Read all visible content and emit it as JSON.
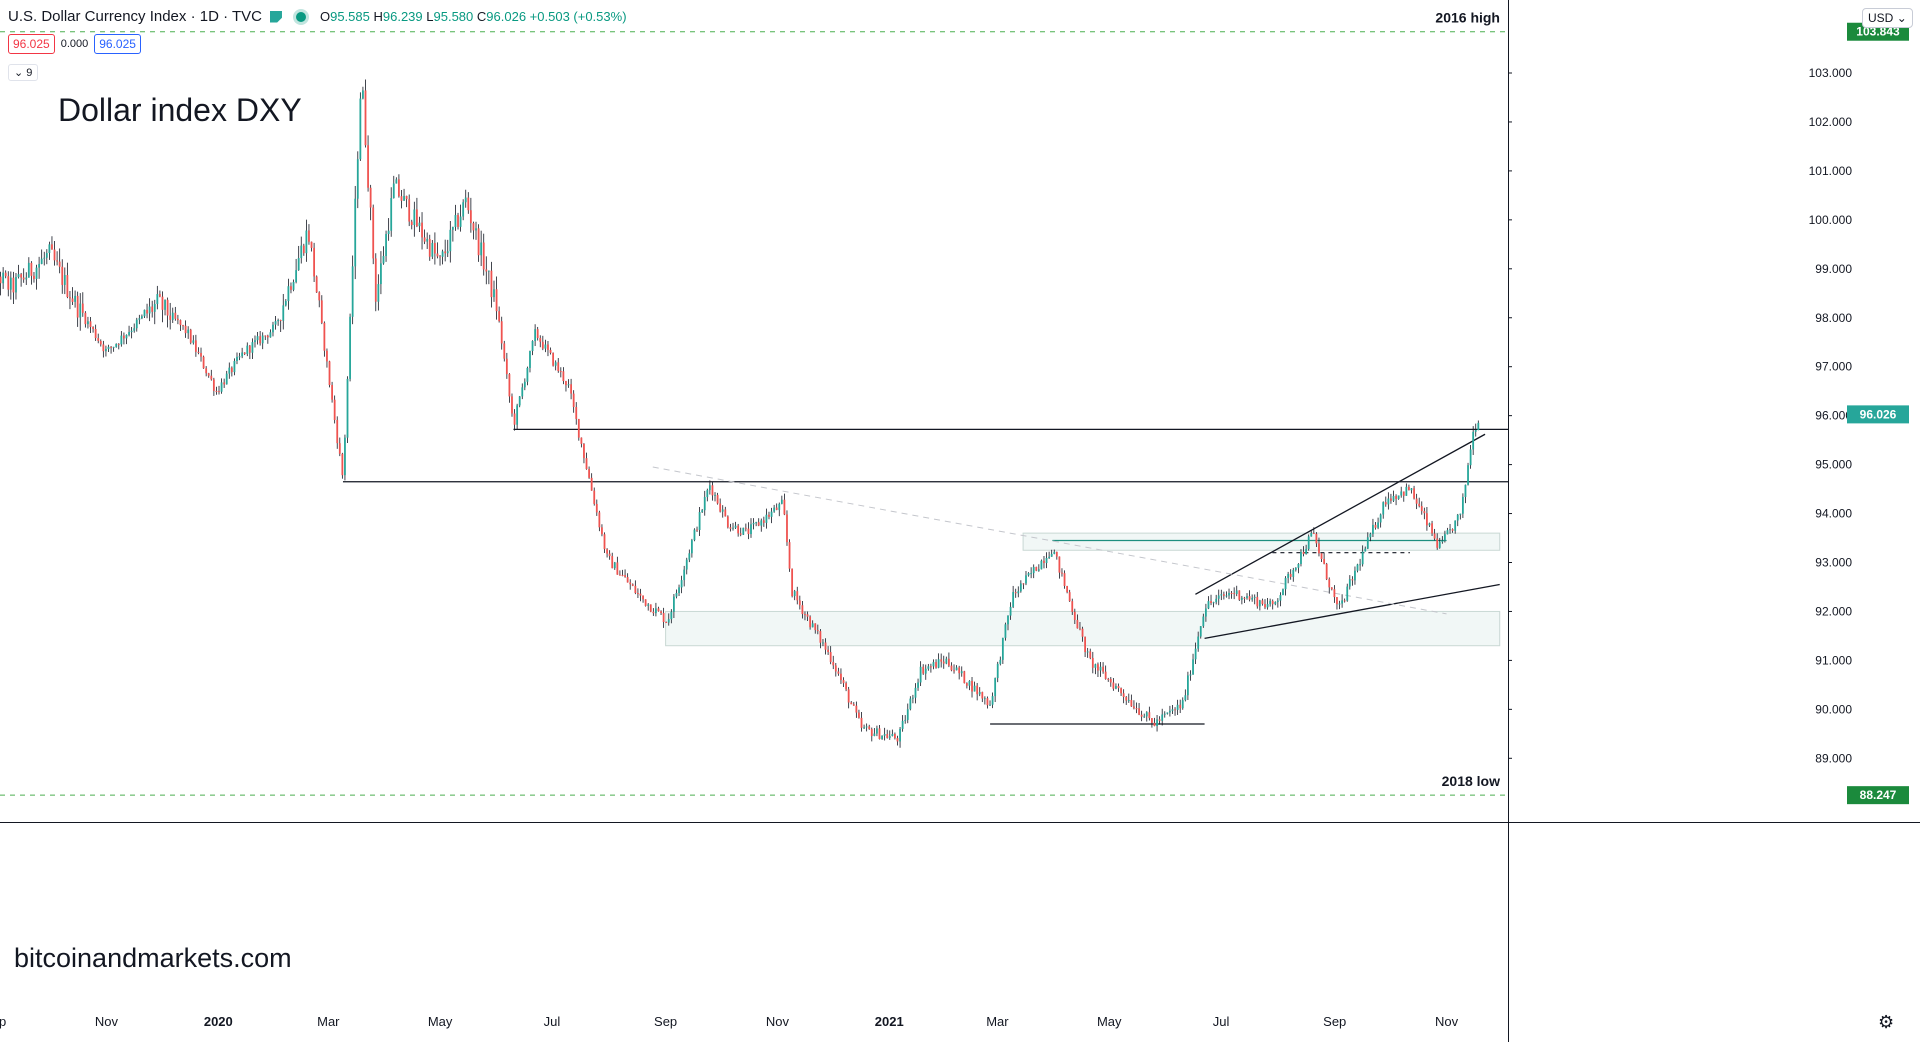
{
  "header": {
    "symbol_title": "U.S. Dollar Currency Index · 1D · TVC",
    "ohlc": {
      "o": "95.585",
      "h": "96.239",
      "l": "95.580",
      "c": "96.026",
      "chg": "+0.503 (+0.53%)"
    },
    "quote_left": "96.025",
    "quote_mid": "0.000",
    "quote_right": "96.025",
    "indicator": "9"
  },
  "annotations": {
    "title": "Dollar index DXY",
    "site": "bitcoinandmarkets.com",
    "top_label": "2016 high",
    "bottom_label": "2018 low"
  },
  "price_scale": {
    "currency_button": "USD",
    "top_value": "103.843",
    "bottom_value": "88.247",
    "last_value": "96.026"
  },
  "colors": {
    "up": "#26a69a",
    "down": "#ef5350",
    "last_price_bg": "#26a69a",
    "dashed_level": "#4caf50",
    "level_label_bg": "#1b8a3c"
  },
  "chart_data": {
    "type": "candlestick",
    "title": "Dollar index DXY",
    "symbol": "U.S. Dollar Currency Index",
    "interval": "1D",
    "y_ticks": [
      "103.000",
      "102.000",
      "101.000",
      "100.000",
      "99.000",
      "98.000",
      "97.000",
      "96.000",
      "95.000",
      "94.000",
      "93.000",
      "92.000",
      "91.000",
      "90.000",
      "89.000"
    ],
    "ylim": [
      88.0,
      104.2
    ],
    "x_ticks": [
      "Sep",
      "Nov",
      "2020",
      "Mar",
      "May",
      "Jul",
      "Sep",
      "Nov",
      "2021",
      "Mar",
      "May",
      "Jul",
      "Sep",
      "Nov"
    ],
    "x_tick_dates": [
      "2019-09-01",
      "2019-11-01",
      "2020-01-01",
      "2020-03-01",
      "2020-05-01",
      "2020-07-01",
      "2020-09-01",
      "2020-11-01",
      "2021-01-01",
      "2021-03-01",
      "2021-05-01",
      "2021-07-01",
      "2021-09-01",
      "2021-11-01"
    ],
    "x_tick_bold": [
      false,
      false,
      true,
      false,
      false,
      false,
      false,
      false,
      true,
      false,
      false,
      false,
      false,
      false
    ],
    "price_path": [
      [
        "2019-08-24",
        99.2
      ],
      [
        "2019-09-10",
        98.6
      ],
      [
        "2019-10-01",
        99.3
      ],
      [
        "2019-10-15",
        98.3
      ],
      [
        "2019-11-01",
        97.3
      ],
      [
        "2019-11-29",
        98.3
      ],
      [
        "2019-12-15",
        97.7
      ],
      [
        "2019-12-31",
        96.5
      ],
      [
        "2020-01-15",
        97.3
      ],
      [
        "2020-02-01",
        97.8
      ],
      [
        "2020-02-19",
        99.8
      ],
      [
        "2020-03-09",
        94.7
      ],
      [
        "2020-03-19",
        103.0
      ],
      [
        "2020-03-27",
        98.4
      ],
      [
        "2020-04-06",
        100.7
      ],
      [
        "2020-04-20",
        99.8
      ],
      [
        "2020-05-01",
        99.1
      ],
      [
        "2020-05-15",
        100.4
      ],
      [
        "2020-06-01",
        98.2
      ],
      [
        "2020-06-10",
        95.8
      ],
      [
        "2020-06-22",
        97.7
      ],
      [
        "2020-07-10",
        96.6
      ],
      [
        "2020-07-31",
        93.1
      ],
      [
        "2020-08-18",
        92.3
      ],
      [
        "2020-09-02",
        91.8
      ],
      [
        "2020-09-25",
        94.6
      ],
      [
        "2020-10-05",
        93.8
      ],
      [
        "2020-10-15",
        93.6
      ],
      [
        "2020-11-04",
        94.2
      ],
      [
        "2020-11-09",
        92.4
      ],
      [
        "2020-12-01",
        91.0
      ],
      [
        "2020-12-17",
        89.6
      ],
      [
        "2021-01-06",
        89.4
      ],
      [
        "2021-01-18",
        90.8
      ],
      [
        "2021-02-01",
        91.0
      ],
      [
        "2021-02-25",
        90.1
      ],
      [
        "2021-03-09",
        92.3
      ],
      [
        "2021-03-31",
        93.3
      ],
      [
        "2021-04-20",
        91.0
      ],
      [
        "2021-05-25",
        89.7
      ],
      [
        "2021-06-10",
        90.1
      ],
      [
        "2021-06-22",
        92.1
      ],
      [
        "2021-07-07",
        92.4
      ],
      [
        "2021-07-29",
        92.1
      ],
      [
        "2021-08-20",
        93.6
      ],
      [
        "2021-09-03",
        92.0
      ],
      [
        "2021-09-29",
        94.3
      ],
      [
        "2021-10-12",
        94.5
      ],
      [
        "2021-10-28",
        93.3
      ],
      [
        "2021-11-09",
        94.0
      ],
      [
        "2021-11-15",
        95.6
      ],
      [
        "2021-11-19",
        96.03
      ]
    ],
    "last_price": 96.026,
    "horizontal_levels": [
      {
        "label": "2016 high",
        "value": 103.843,
        "style": "dashed"
      },
      {
        "label": "2018 low",
        "value": 88.247,
        "style": "dashed"
      },
      {
        "value": 94.65,
        "from": "2020-03-09",
        "style": "solid"
      },
      {
        "value": 95.72,
        "from": "2020-06-10",
        "style": "solid"
      },
      {
        "value": 89.7,
        "from": "2021-02-25",
        "to": "2021-06-22",
        "style": "solid"
      },
      {
        "value": 93.2,
        "from": "2021-07-29",
        "to": "2021-10-12",
        "style": "dashed"
      },
      {
        "value": 93.45,
        "from": "2021-03-31",
        "to": "2021-11-01",
        "style": "solid-teal"
      }
    ],
    "zones": [
      {
        "from": "2020-09-01",
        "to": "2021-11-30",
        "low": 91.3,
        "high": 92.0
      },
      {
        "from": "2021-03-15",
        "to": "2021-11-30",
        "low": 93.25,
        "high": 93.6
      }
    ],
    "trendlines": [
      {
        "from": [
          "2021-06-17",
          92.35
        ],
        "to": [
          "2021-11-22",
          95.62
        ],
        "style": "solid"
      },
      {
        "from": [
          "2021-06-22",
          91.45
        ],
        "to": [
          "2021-11-30",
          92.55
        ],
        "style": "solid"
      },
      {
        "from": [
          "2020-08-25",
          94.95
        ],
        "to": [
          "2021-11-01",
          91.95
        ],
        "style": "dashed-gray"
      }
    ]
  }
}
